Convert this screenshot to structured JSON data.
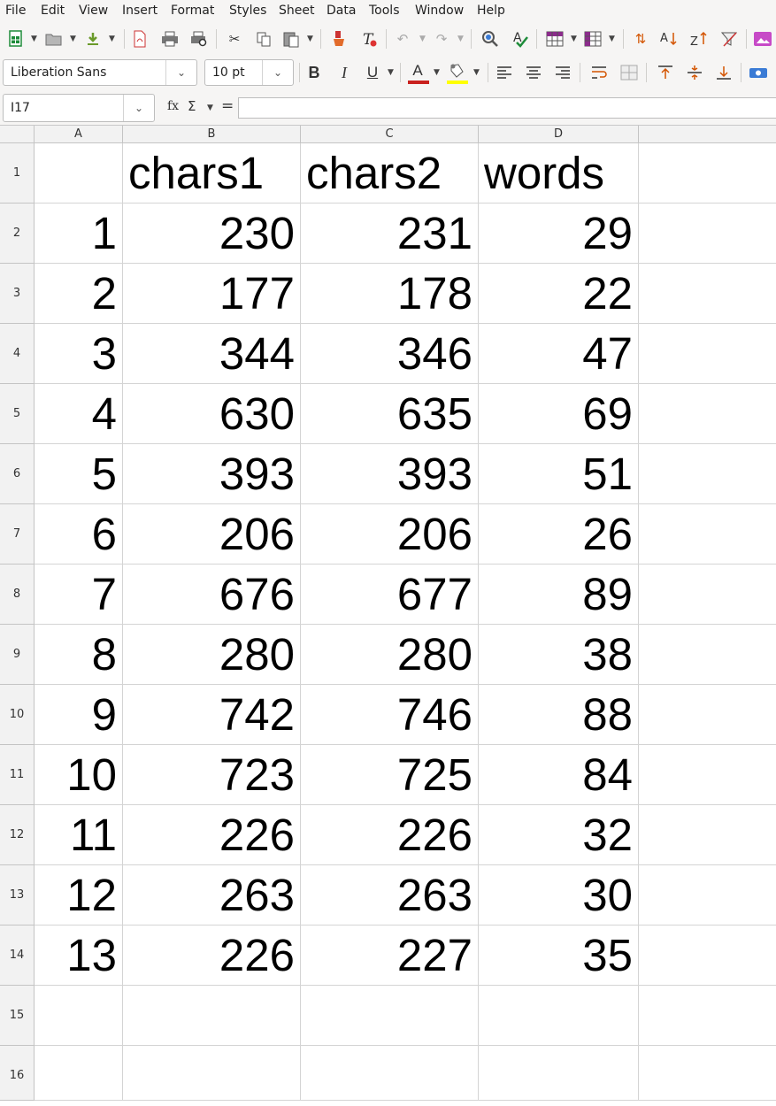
{
  "menu": [
    "File",
    "Edit",
    "View",
    "Insert",
    "Format",
    "Styles",
    "Sheet",
    "Data",
    "Tools",
    "Window",
    "Help"
  ],
  "toolbar": {
    "font_name": "Liberation Sans",
    "font_size": "10 pt",
    "bold_label": "B",
    "italic_label": "I",
    "underline_label": "U",
    "font_color_label": "A",
    "font_color": "#c9211e",
    "highlight_color": "#ffff00"
  },
  "formula_bar": {
    "name_box": "I17",
    "fx_label": "fx",
    "sum_label": "Σ",
    "equals_label": "=",
    "content": ""
  },
  "sheet": {
    "columns": [
      "A",
      "B",
      "C",
      "D"
    ],
    "row_numbers": [
      "1",
      "2",
      "3",
      "4",
      "5",
      "6",
      "7",
      "8",
      "9",
      "10",
      "11",
      "12",
      "13",
      "14",
      "15",
      "16"
    ],
    "header_row": [
      "",
      "chars1",
      "chars2",
      "words"
    ],
    "rows": [
      [
        "1",
        "230",
        "231",
        "29"
      ],
      [
        "2",
        "177",
        "178",
        "22"
      ],
      [
        "3",
        "344",
        "346",
        "47"
      ],
      [
        "4",
        "630",
        "635",
        "69"
      ],
      [
        "5",
        "393",
        "393",
        "51"
      ],
      [
        "6",
        "206",
        "206",
        "26"
      ],
      [
        "7",
        "676",
        "677",
        "89"
      ],
      [
        "8",
        "280",
        "280",
        "38"
      ],
      [
        "9",
        "742",
        "746",
        "88"
      ],
      [
        "10",
        "723",
        "725",
        "84"
      ],
      [
        "11",
        "226",
        "226",
        "32"
      ],
      [
        "12",
        "263",
        "263",
        "30"
      ],
      [
        "13",
        "226",
        "227",
        "35"
      ]
    ]
  }
}
